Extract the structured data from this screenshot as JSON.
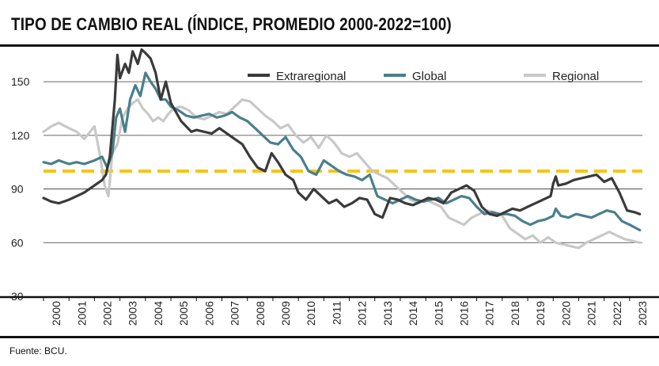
{
  "chart_data": {
    "type": "line",
    "title": "TIPO DE CAMBIO REAL (ÍNDICE, PROMEDIO 2000-2022=100)",
    "source": "Fuente: BCU.",
    "ylim": [
      30,
      170
    ],
    "yticks": [
      30,
      60,
      90,
      120,
      150
    ],
    "xlim": [
      2000,
      2023.5
    ],
    "x_ticks": [
      "2000",
      "2001",
      "2002",
      "2003",
      "2004",
      "2005",
      "2006",
      "2007",
      "2008",
      "2009",
      "2010",
      "2011",
      "2012",
      "2013",
      "2014",
      "2015",
      "2016",
      "2017",
      "2018",
      "2019",
      "2020",
      "2021",
      "2022",
      "2023"
    ],
    "reference_line": {
      "value": 100,
      "color": "#F5C518"
    },
    "legend": [
      "Extraregional",
      "Global",
      "Regional"
    ],
    "series": [
      {
        "name": "Extraregional",
        "color": "#3a3a3a",
        "x": [
          2000.0,
          2000.3,
          2000.6,
          2001.0,
          2001.3,
          2001.6,
          2002.0,
          2002.3,
          2002.45,
          2002.6,
          2002.8,
          2002.9,
          2003.0,
          2003.2,
          2003.35,
          2003.5,
          2003.7,
          2003.85,
          2004.0,
          2004.2,
          2004.4,
          2004.6,
          2004.8,
          2005.0,
          2005.2,
          2005.4,
          2005.6,
          2005.8,
          2006.0,
          2006.3,
          2006.6,
          2006.9,
          2007.2,
          2007.5,
          2007.8,
          2008.1,
          2008.4,
          2008.7,
          2008.95,
          2009.2,
          2009.5,
          2009.8,
          2010.0,
          2010.3,
          2010.6,
          2010.9,
          2011.2,
          2011.5,
          2011.8,
          2012.1,
          2012.4,
          2012.7,
          2013.0,
          2013.3,
          2013.6,
          2013.9,
          2014.2,
          2014.5,
          2014.8,
          2015.1,
          2015.4,
          2015.7,
          2016.0,
          2016.3,
          2016.6,
          2016.9,
          2017.2,
          2017.5,
          2017.8,
          2018.1,
          2018.4,
          2018.7,
          2019.0,
          2019.3,
          2019.6,
          2019.9,
          2020.0,
          2020.1,
          2020.2,
          2020.5,
          2020.8,
          2021.1,
          2021.4,
          2021.7,
          2022.0,
          2022.3,
          2022.6,
          2022.9,
          2023.2,
          2023.4
        ],
        "values": [
          85,
          83,
          82,
          84,
          86,
          88,
          92,
          95,
          98,
          108,
          140,
          165,
          152,
          160,
          155,
          167,
          160,
          168,
          166,
          163,
          155,
          140,
          150,
          138,
          133,
          128,
          125,
          122,
          123,
          122,
          121,
          124,
          121,
          118,
          115,
          108,
          102,
          100,
          110,
          105,
          98,
          95,
          88,
          84,
          90,
          86,
          82,
          84,
          80,
          82,
          85,
          84,
          76,
          74,
          85,
          84,
          82,
          81,
          83,
          85,
          84,
          82,
          88,
          90,
          92,
          89,
          80,
          76,
          75,
          77,
          79,
          78,
          80,
          82,
          84,
          86,
          93,
          97,
          92,
          93,
          95,
          96,
          97,
          98,
          94,
          96,
          88,
          78,
          77,
          76
        ]
      },
      {
        "name": "Global",
        "color": "#4a7f8c",
        "x": [
          2000.0,
          2000.3,
          2000.6,
          2001.0,
          2001.3,
          2001.6,
          2002.0,
          2002.3,
          2002.5,
          2002.7,
          2002.85,
          2003.0,
          2003.2,
          2003.4,
          2003.6,
          2003.8,
          2004.0,
          2004.2,
          2004.4,
          2004.6,
          2004.8,
          2005.0,
          2005.3,
          2005.6,
          2005.9,
          2006.2,
          2006.5,
          2006.8,
          2007.1,
          2007.4,
          2007.7,
          2008.0,
          2008.3,
          2008.6,
          2008.9,
          2009.2,
          2009.5,
          2009.8,
          2010.1,
          2010.4,
          2010.7,
          2011.0,
          2011.3,
          2011.6,
          2011.9,
          2012.2,
          2012.5,
          2012.8,
          2013.1,
          2013.4,
          2013.7,
          2014.0,
          2014.3,
          2014.6,
          2014.9,
          2015.2,
          2015.5,
          2015.8,
          2016.1,
          2016.4,
          2016.7,
          2017.0,
          2017.3,
          2017.6,
          2017.9,
          2018.2,
          2018.5,
          2018.8,
          2019.1,
          2019.4,
          2019.7,
          2020.0,
          2020.1,
          2020.3,
          2020.6,
          2020.9,
          2021.2,
          2021.5,
          2021.8,
          2022.1,
          2022.4,
          2022.7,
          2023.0,
          2023.4
        ],
        "values": [
          105,
          104,
          106,
          104,
          105,
          104,
          106,
          108,
          102,
          110,
          130,
          135,
          122,
          140,
          148,
          142,
          155,
          150,
          146,
          140,
          140,
          136,
          134,
          131,
          130,
          131,
          132,
          130,
          131,
          133,
          130,
          128,
          124,
          120,
          116,
          115,
          119,
          112,
          108,
          100,
          98,
          106,
          103,
          100,
          98,
          97,
          95,
          98,
          86,
          84,
          82,
          84,
          86,
          84,
          83,
          84,
          85,
          82,
          84,
          86,
          85,
          80,
          76,
          77,
          76,
          76,
          75,
          72,
          70,
          72,
          73,
          75,
          79,
          75,
          74,
          76,
          75,
          74,
          76,
          78,
          77,
          72,
          70,
          67
        ]
      },
      {
        "name": "Regional",
        "color": "#c8c8c8",
        "x": [
          2000.0,
          2000.3,
          2000.6,
          2001.0,
          2001.3,
          2001.6,
          2002.0,
          2002.2,
          2002.4,
          2002.55,
          2002.7,
          2002.9,
          2003.1,
          2003.3,
          2003.5,
          2003.7,
          2003.9,
          2004.1,
          2004.3,
          2004.5,
          2004.7,
          2004.9,
          2005.1,
          2005.4,
          2005.7,
          2006.0,
          2006.3,
          2006.6,
          2006.9,
          2007.2,
          2007.5,
          2007.8,
          2008.1,
          2008.4,
          2008.7,
          2009.0,
          2009.3,
          2009.6,
          2009.9,
          2010.2,
          2010.5,
          2010.8,
          2011.1,
          2011.4,
          2011.7,
          2012.0,
          2012.3,
          2012.6,
          2012.9,
          2013.2,
          2013.5,
          2013.8,
          2014.1,
          2014.4,
          2014.7,
          2015.0,
          2015.3,
          2015.6,
          2015.9,
          2016.2,
          2016.5,
          2016.8,
          2017.1,
          2017.4,
          2017.7,
          2018.0,
          2018.3,
          2018.6,
          2018.9,
          2019.2,
          2019.5,
          2019.8,
          2020.1,
          2020.4,
          2020.7,
          2021.0,
          2021.3,
          2021.6,
          2021.9,
          2022.2,
          2022.5,
          2022.8,
          2023.1,
          2023.4
        ],
        "values": [
          122,
          125,
          127,
          124,
          122,
          118,
          125,
          110,
          92,
          86,
          110,
          115,
          130,
          135,
          138,
          140,
          135,
          132,
          128,
          130,
          128,
          132,
          135,
          136,
          134,
          130,
          129,
          131,
          133,
          132,
          136,
          140,
          139,
          135,
          131,
          128,
          124,
          126,
          120,
          116,
          119,
          113,
          120,
          116,
          110,
          108,
          110,
          105,
          100,
          98,
          96,
          92,
          88,
          84,
          82,
          84,
          82,
          80,
          74,
          72,
          70,
          74,
          76,
          78,
          77,
          75,
          68,
          65,
          62,
          64,
          60,
          63,
          60,
          59,
          58,
          57,
          60,
          62,
          64,
          66,
          64,
          62,
          61,
          60
        ]
      }
    ]
  }
}
